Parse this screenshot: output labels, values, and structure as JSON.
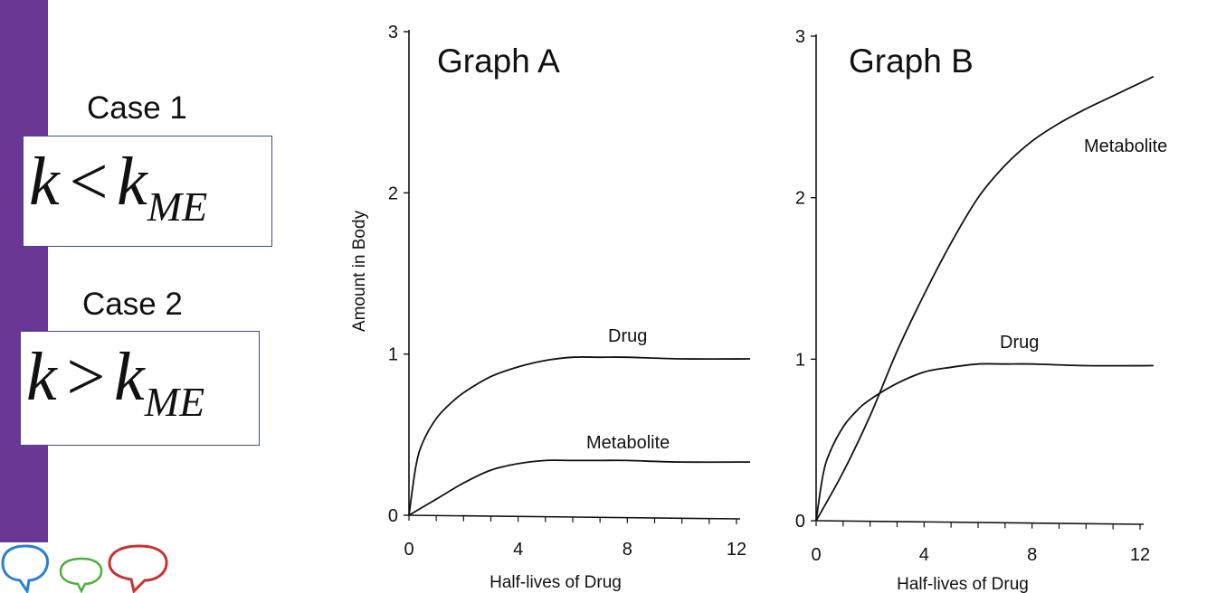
{
  "cases": [
    {
      "label": "Case 1",
      "formula": {
        "lhs": "k",
        "op": "<",
        "rhs": "k",
        "sub": "ME"
      }
    },
    {
      "label": "Case 2",
      "formula": {
        "lhs": "k",
        "op": ">",
        "rhs": "k",
        "sub": "ME"
      }
    }
  ],
  "colors": {
    "sidebar": "#6a3794",
    "formula_border": "#3b4a8f",
    "bubble_blue": "#2a7fd4",
    "bubble_green": "#4fae3c",
    "bubble_red": "#c83232",
    "ink": "#111111"
  },
  "icons": [
    "speech-bubble-blue-icon",
    "speech-bubble-green-icon",
    "speech-bubble-red-icon"
  ],
  "chart_data": [
    {
      "type": "line",
      "title": "Graph A",
      "xlabel": "Half-lives of Drug",
      "ylabel": "Amount in Body",
      "xlim": [
        0,
        12
      ],
      "ylim": [
        0,
        3
      ],
      "xticks": [
        0,
        4,
        8,
        12
      ],
      "yticks": [
        0,
        1,
        2,
        3
      ],
      "series": [
        {
          "name": "Drug",
          "x": [
            0,
            0.25,
            0.5,
            1,
            1.5,
            2,
            3,
            4,
            5,
            6,
            7,
            8,
            10,
            12.5
          ],
          "values": [
            0,
            0.3,
            0.45,
            0.6,
            0.69,
            0.76,
            0.86,
            0.92,
            0.96,
            0.98,
            0.98,
            0.98,
            0.97,
            0.97
          ]
        },
        {
          "name": "Metabolite",
          "x": [
            0,
            1,
            2,
            3,
            4,
            5,
            6,
            7,
            8,
            10,
            12.5
          ],
          "values": [
            0,
            0.1,
            0.2,
            0.28,
            0.32,
            0.34,
            0.34,
            0.34,
            0.34,
            0.33,
            0.33
          ]
        }
      ]
    },
    {
      "type": "line",
      "title": "Graph B",
      "xlabel": "Half-lives of Drug",
      "ylabel": "",
      "xlim": [
        0,
        12
      ],
      "ylim": [
        0,
        3
      ],
      "xticks": [
        0,
        4,
        8,
        12
      ],
      "yticks": [
        0,
        1,
        2,
        3
      ],
      "series": [
        {
          "name": "Drug",
          "x": [
            0,
            0.25,
            0.5,
            1,
            1.5,
            2,
            3,
            4,
            5,
            6,
            7,
            8,
            10,
            12.5
          ],
          "values": [
            0,
            0.28,
            0.42,
            0.58,
            0.68,
            0.75,
            0.85,
            0.92,
            0.95,
            0.97,
            0.97,
            0.97,
            0.96,
            0.96
          ]
        },
        {
          "name": "Metabolite",
          "x": [
            0,
            1,
            2,
            3,
            4,
            5,
            6,
            7,
            8,
            9,
            10,
            11,
            12.5
          ],
          "values": [
            0,
            0.3,
            0.65,
            1.05,
            1.4,
            1.72,
            2.0,
            2.2,
            2.35,
            2.46,
            2.55,
            2.63,
            2.75
          ]
        }
      ]
    }
  ]
}
